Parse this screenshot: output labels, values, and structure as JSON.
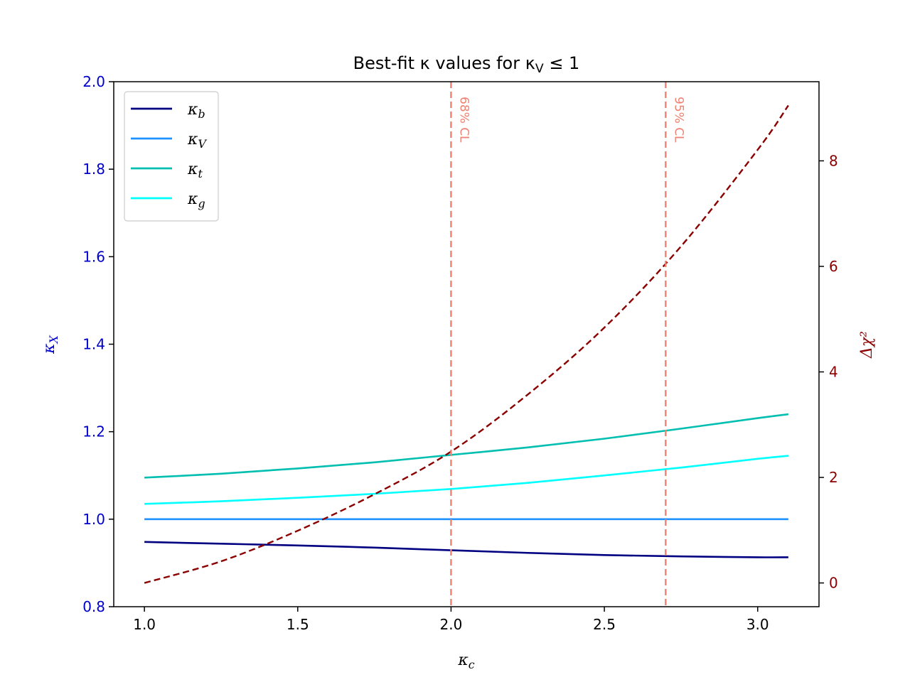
{
  "chart_data": {
    "type": "line",
    "title": "Best-fit κ values for κ_V ≤ 1",
    "xlabel": "κ_c",
    "ylabel_left": "κ_X",
    "ylabel_right": "Δχ²",
    "xlim": [
      0.9,
      3.2
    ],
    "ylim_left": [
      0.8,
      2.0
    ],
    "ylim_right": [
      -0.45,
      9.5
    ],
    "x_ticks": [
      "1.0",
      "1.5",
      "2.0",
      "2.5",
      "3.0"
    ],
    "y_left_ticks": [
      "0.8",
      "1.0",
      "1.2",
      "1.4",
      "1.6",
      "1.8",
      "2.0"
    ],
    "y_right_ticks": [
      "0",
      "2",
      "4",
      "6",
      "8"
    ],
    "legend_position": "upper-left",
    "x": [
      1.0,
      1.25,
      1.5,
      1.75,
      2.0,
      2.25,
      2.5,
      2.75,
      3.0,
      3.1
    ],
    "series": [
      {
        "name": "κ_b",
        "axis": "left",
        "color": "#000080",
        "style": "solid",
        "values": [
          0.948,
          0.944,
          0.94,
          0.935,
          0.929,
          0.923,
          0.918,
          0.915,
          0.913,
          0.913
        ]
      },
      {
        "name": "κ_V",
        "axis": "left",
        "color": "#1e90ff",
        "style": "solid",
        "values": [
          1.0,
          1.0,
          1.0,
          1.0,
          1.0,
          1.0,
          1.0,
          1.0,
          1.0,
          1.0
        ]
      },
      {
        "name": "κ_t",
        "axis": "left",
        "color": "#00bfb0",
        "style": "solid",
        "values": [
          1.095,
          1.104,
          1.116,
          1.13,
          1.147,
          1.164,
          1.184,
          1.207,
          1.231,
          1.24
        ]
      },
      {
        "name": "κ_g",
        "axis": "left",
        "color": "#00ffff",
        "style": "solid",
        "values": [
          1.035,
          1.041,
          1.049,
          1.058,
          1.069,
          1.083,
          1.1,
          1.118,
          1.138,
          1.145
        ]
      },
      {
        "axis": "right",
        "color": "#8b0000",
        "style": "dashed",
        "values": [
          0.0,
          0.41,
          0.99,
          1.68,
          2.49,
          3.57,
          4.84,
          6.38,
          8.21,
          9.05
        ]
      }
    ],
    "vlines": [
      {
        "x": 2.0,
        "label": "68% CL",
        "color": "#f08070"
      },
      {
        "x": 2.7,
        "label": "95% CL",
        "color": "#f08070"
      }
    ],
    "colors": {
      "left_axis": "#0000cd",
      "right_axis": "#8b0000"
    }
  }
}
